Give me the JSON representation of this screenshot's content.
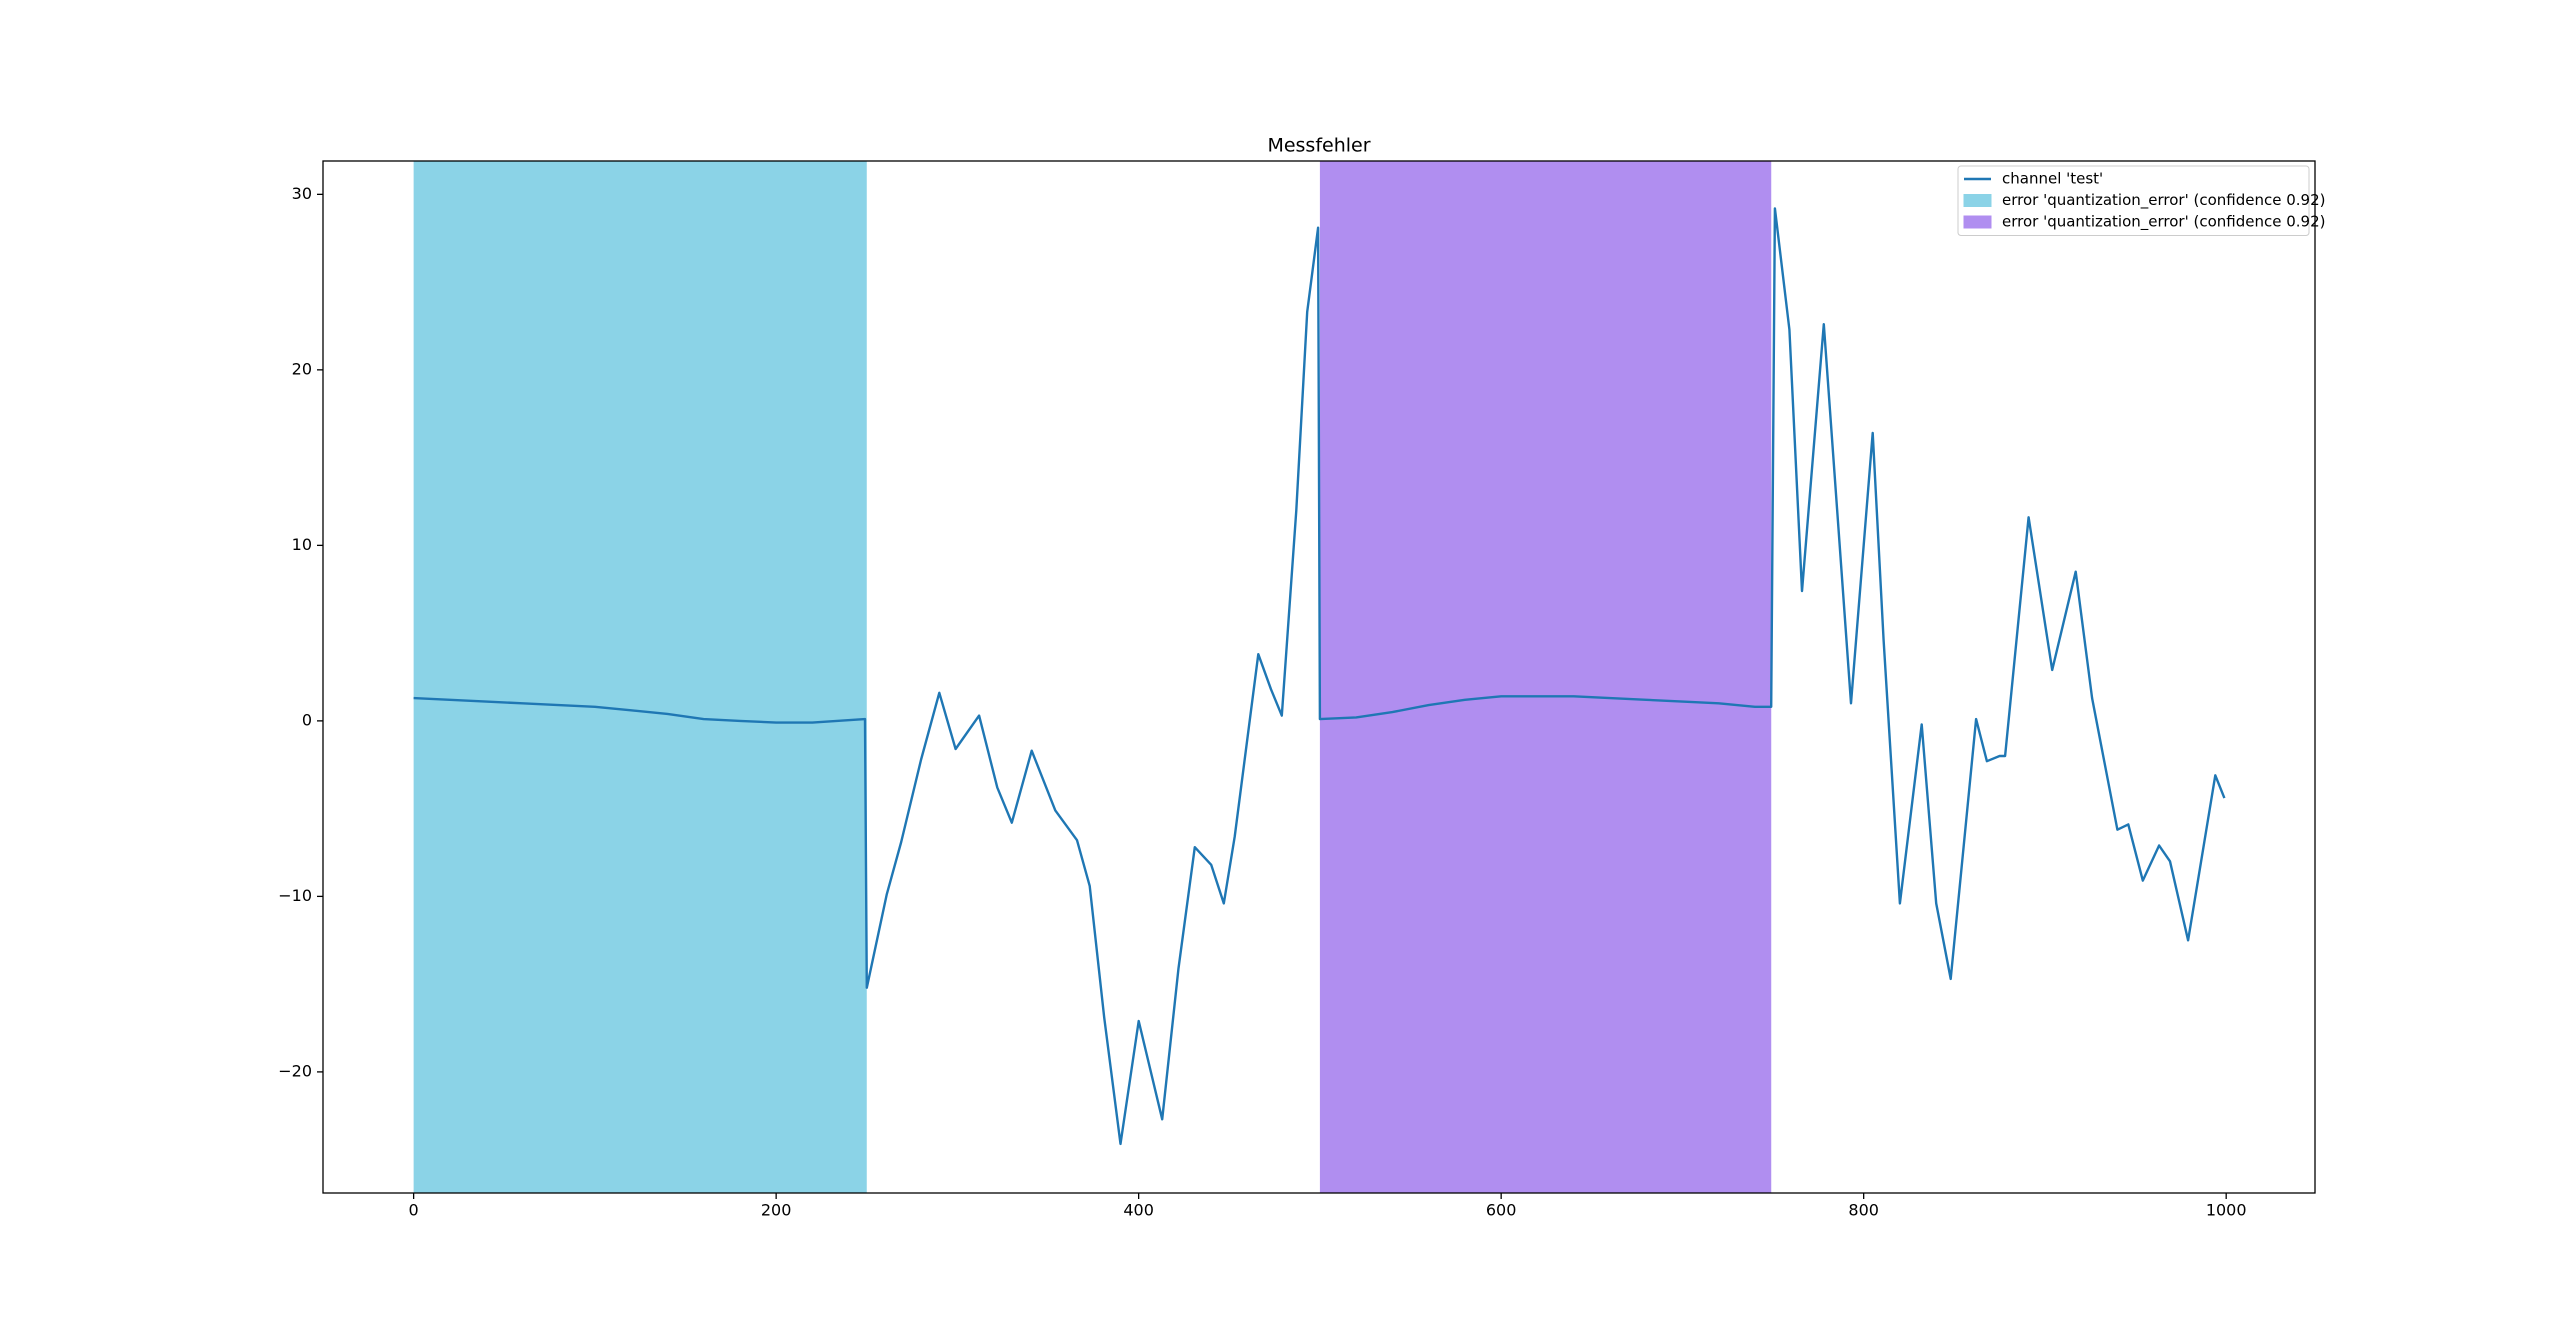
{
  "chart_data": {
    "type": "line",
    "title": "Messfehler",
    "xlim": [
      -50,
      1049
    ],
    "ylim": [
      -26.9,
      31.9
    ],
    "xticks": [
      0,
      200,
      400,
      600,
      800,
      1000
    ],
    "yticks": [
      {
        "value": -20,
        "label": "−20"
      },
      {
        "value": -10,
        "label": "−10"
      },
      0,
      10,
      20,
      30
    ],
    "spans": [
      {
        "name": "error 'quantization_error' (confidence 0.92)",
        "color": "#8bd3e7",
        "range": [
          0,
          250
        ]
      },
      {
        "name": "error 'quantization_error' (confidence 0.92)",
        "color": "#b08ef0",
        "range": [
          500,
          749
        ]
      }
    ],
    "series": [
      {
        "name": "channel 'test'",
        "color": "#1f77b4",
        "x": [
          0,
          20,
          40,
          60,
          80,
          100,
          120,
          140,
          160,
          180,
          200,
          220,
          249,
          250,
          261,
          269,
          280,
          290,
          299,
          312,
          322,
          330,
          341,
          354,
          366,
          373,
          381,
          390,
          400,
          413,
          422,
          431,
          440,
          447,
          453,
          466,
          473,
          479,
          487,
          493,
          499,
          500,
          520,
          540,
          560,
          580,
          600,
          620,
          640,
          660,
          680,
          700,
          720,
          740,
          749,
          751,
          759,
          766,
          778,
          786,
          793,
          805,
          811,
          820,
          832,
          840,
          848,
          862,
          868,
          875,
          878,
          891,
          904,
          917,
          926,
          940,
          946,
          954,
          963,
          969,
          979,
          994,
          999
        ],
        "values": [
          1.3,
          1.2,
          1.1,
          1.0,
          0.9,
          0.8,
          0.6,
          0.4,
          0.1,
          0.0,
          -0.1,
          -0.1,
          0.1,
          -15.2,
          -9.9,
          -6.9,
          -2.2,
          1.6,
          -1.6,
          0.3,
          -3.8,
          -5.8,
          -1.7,
          -5.1,
          -6.8,
          -9.4,
          -16.9,
          -24.1,
          -17.1,
          -22.7,
          -14.1,
          -7.2,
          -8.2,
          -10.4,
          -6.6,
          3.8,
          1.8,
          0.3,
          12.0,
          23.3,
          28.1,
          0.1,
          0.2,
          0.5,
          0.9,
          1.2,
          1.4,
          1.4,
          1.4,
          1.3,
          1.2,
          1.1,
          1.0,
          0.8,
          0.8,
          29.2,
          22.3,
          7.4,
          22.6,
          11.1,
          1.0,
          16.4,
          4.6,
          -10.4,
          -0.2,
          -10.4,
          -14.7,
          0.1,
          -2.3,
          -2.0,
          -2.0,
          11.6,
          2.9,
          8.5,
          1.3,
          -6.2,
          -5.9,
          -9.1,
          -7.1,
          -8.0,
          -12.5,
          -3.1,
          -4.4
        ]
      }
    ]
  }
}
